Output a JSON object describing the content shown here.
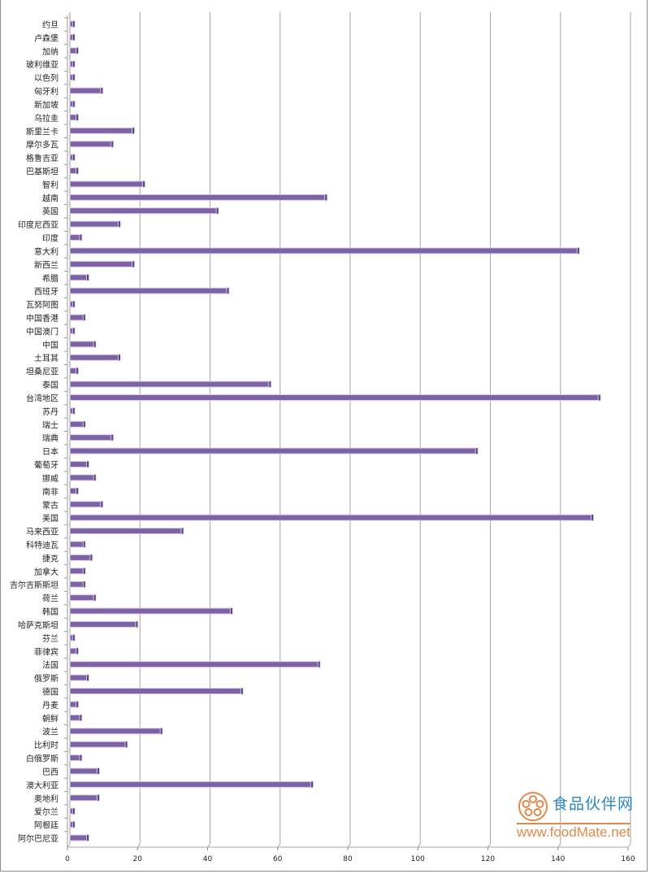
{
  "chart_data": {
    "type": "bar",
    "orientation": "horizontal",
    "style": "3d",
    "title": "",
    "xlabel": "",
    "ylabel": "",
    "xlim": [
      0,
      160
    ],
    "xticks": [
      0,
      20,
      40,
      60,
      80,
      100,
      120,
      140,
      160
    ],
    "grid": true,
    "bar_color": "#7e62a6",
    "categories": [
      "约旦",
      "卢森堡",
      "加纳",
      "玻利维亚",
      "以色列",
      "匈牙利",
      "新加坡",
      "乌拉圭",
      "斯里兰卡",
      "摩尔多瓦",
      "格鲁吉亚",
      "巴基斯坦",
      "智利",
      "越南",
      "英国",
      "印度尼西亚",
      "印度",
      "意大利",
      "新西兰",
      "希腊",
      "西班牙",
      "瓦努阿图",
      "中国香港",
      "中国澳门",
      "中国",
      "土耳其",
      "坦桑尼亚",
      "泰国",
      "台湾地区",
      "苏丹",
      "瑞士",
      "瑞典",
      "日本",
      "葡萄牙",
      "挪威",
      "南非",
      "蒙古",
      "美国",
      "马来西亚",
      "科特迪瓦",
      "捷克",
      "加拿大",
      "吉尔吉斯斯坦",
      "荷兰",
      "韩国",
      "哈萨克斯坦",
      "芬兰",
      "菲律宾",
      "法国",
      "俄罗斯",
      "德国",
      "丹麦",
      "朝鲜",
      "波兰",
      "比利时",
      "白俄罗斯",
      "巴西",
      "澳大利亚",
      "奥地利",
      "爱尔兰",
      "阿根廷",
      "阿尔巴尼亚"
    ],
    "values": [
      1,
      1,
      2,
      1,
      1,
      9,
      1,
      2,
      18,
      12,
      1,
      2,
      21,
      73,
      42,
      14,
      3,
      145,
      18,
      5,
      45,
      1,
      4,
      1,
      7,
      14,
      2,
      57,
      151,
      1,
      4,
      12,
      116,
      5,
      7,
      2,
      9,
      149,
      32,
      4,
      6,
      4,
      4,
      7,
      46,
      19,
      1,
      2,
      71,
      5,
      49,
      2,
      3,
      26,
      16,
      3,
      8,
      69,
      8,
      1,
      1,
      5
    ]
  },
  "watermark": {
    "name": "食品伙伴网",
    "url": "www.foodMate.net"
  }
}
